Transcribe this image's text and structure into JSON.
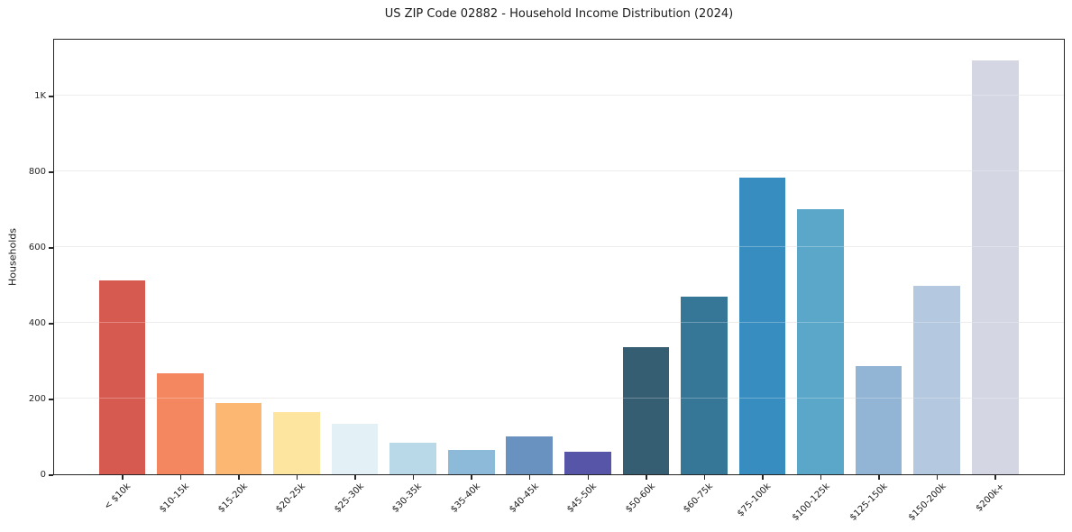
{
  "figure": {
    "title": "US ZIP Code 02882 - Household Income Distribution (2024)",
    "ylabel": "Households"
  },
  "chart_data": {
    "type": "bar",
    "title": "US ZIP Code 02882 - Household Income Distribution (2024)",
    "xlabel": "",
    "ylabel": "Households",
    "categories": [
      "< $10k",
      "$10-15k",
      "$15-20k",
      "$20-25k",
      "$25-30k",
      "$30-35k",
      "$35-40k",
      "$40-45k",
      "$45-50k",
      "$50-60k",
      "$60-75k",
      "$75-100k",
      "$100-125k",
      "$125-150k",
      "$150-200k",
      "$200k+"
    ],
    "values": [
      511,
      266,
      188,
      164,
      133,
      83,
      64,
      100,
      59,
      336,
      470,
      783,
      699,
      286,
      497,
      1092
    ],
    "bar_colors": [
      "#d75a50",
      "#f4875f",
      "#fcb873",
      "#fde5a0",
      "#e3f0f5",
      "#b9d9e9",
      "#8cbad8",
      "#6a92c0",
      "#5655a7",
      "#365e72",
      "#367798",
      "#378cc0",
      "#5ba7c9",
      "#92b5d6",
      "#b4c8e0",
      "#d4d6e4"
    ],
    "ylim": [
      0,
      1152
    ],
    "yticks": [
      {
        "value": 0,
        "label": "0"
      },
      {
        "value": 200,
        "label": "200"
      },
      {
        "value": 400,
        "label": "400"
      },
      {
        "value": 600,
        "label": "600"
      },
      {
        "value": 800,
        "label": "800"
      },
      {
        "value": 1000,
        "label": "1K"
      }
    ],
    "grid": "horizontal",
    "legend": "none",
    "background_color": "#ffffff",
    "spine_color": "#262626",
    "gridline_color": "#e7e7e7"
  }
}
